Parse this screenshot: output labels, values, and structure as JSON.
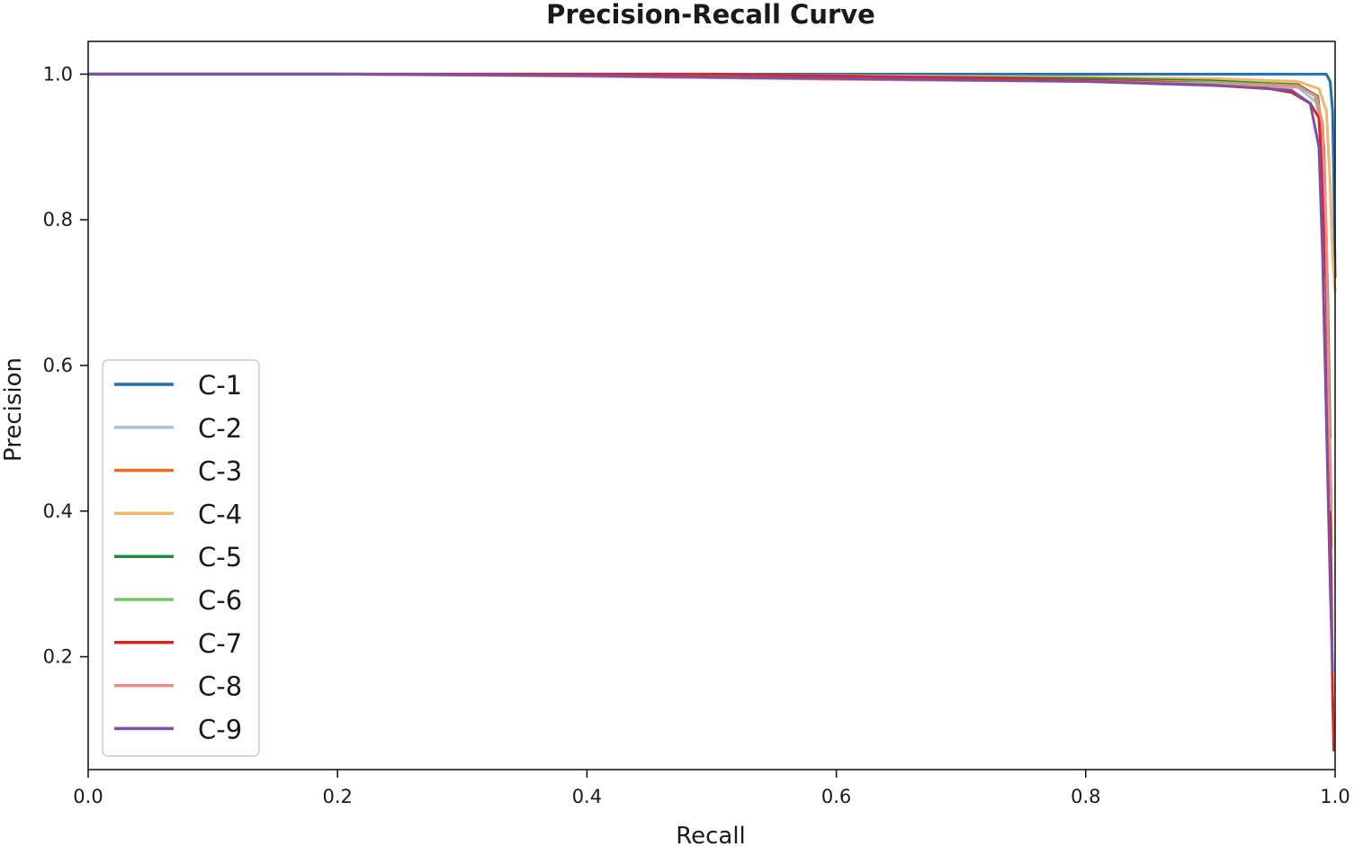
{
  "chart_data": {
    "type": "line",
    "title": "Precision-Recall Curve",
    "xlabel": "Recall",
    "ylabel": "Precision",
    "xlim": [
      0.0,
      1.0
    ],
    "ylim": [
      0.045,
      1.045
    ],
    "xticks": [
      "0.0",
      "0.2",
      "0.4",
      "0.6",
      "0.8",
      "1.0"
    ],
    "yticks": [
      "0.2",
      "0.4",
      "0.6",
      "0.8",
      "1.0"
    ],
    "grid": false,
    "legend_position": "lower-left",
    "series": [
      {
        "name": "C-1",
        "color": "#1f6fb4",
        "x": [
          0.0,
          0.3,
          0.6,
          0.85,
          0.95,
          0.993,
          0.996,
          0.998,
          0.999,
          1.0
        ],
        "y": [
          1.0,
          1.0,
          1.0,
          1.0,
          1.0,
          1.0,
          0.99,
          0.95,
          0.85,
          0.72
        ]
      },
      {
        "name": "C-2",
        "color": "#a4c2e4",
        "x": [
          0.0,
          0.2,
          0.4,
          0.6,
          0.8,
          0.9,
          0.97,
          0.986,
          0.99,
          0.993,
          0.995,
          0.997
        ],
        "y": [
          1.0,
          1.0,
          0.998,
          0.995,
          0.99,
          0.984,
          0.982,
          0.96,
          0.9,
          0.7,
          0.45,
          0.3
        ]
      },
      {
        "name": "C-3",
        "color": "#f26b1d",
        "x": [
          0.0,
          0.2,
          0.4,
          0.6,
          0.8,
          0.9,
          0.97,
          0.985,
          0.99,
          0.992,
          0.995,
          0.997
        ],
        "y": [
          1.0,
          1.0,
          0.999,
          0.996,
          0.992,
          0.99,
          0.986,
          0.97,
          0.93,
          0.8,
          0.55,
          0.35
        ]
      },
      {
        "name": "C-4",
        "color": "#f5b36b",
        "x": [
          0.0,
          0.2,
          0.4,
          0.6,
          0.8,
          0.9,
          0.97,
          0.987,
          0.993,
          0.996,
          0.998,
          1.0
        ],
        "y": [
          1.0,
          1.0,
          1.0,
          0.998,
          0.996,
          0.994,
          0.99,
          0.98,
          0.95,
          0.85,
          0.75,
          0.7
        ]
      },
      {
        "name": "C-5",
        "color": "#1e8a3c",
        "x": [
          0.0,
          0.2,
          0.4,
          0.6,
          0.8,
          0.9,
          0.97,
          0.986,
          0.991,
          0.994,
          0.996
        ],
        "y": [
          1.0,
          1.0,
          0.999,
          0.997,
          0.994,
          0.991,
          0.985,
          0.97,
          0.9,
          0.7,
          0.5
        ]
      },
      {
        "name": "C-6",
        "color": "#7cc46a",
        "x": [
          0.0,
          0.2,
          0.4,
          0.6,
          0.8,
          0.9,
          0.97,
          0.984,
          0.99,
          0.993,
          0.995,
          0.997
        ],
        "y": [
          1.0,
          1.0,
          0.998,
          0.996,
          0.992,
          0.989,
          0.984,
          0.97,
          0.92,
          0.75,
          0.55,
          0.4
        ]
      },
      {
        "name": "C-7",
        "color": "#d62728",
        "x": [
          0.0,
          0.3,
          0.5,
          0.7,
          0.85,
          0.93,
          0.965,
          0.98,
          0.987,
          0.99,
          0.993,
          0.995,
          0.997,
          0.998,
          0.999
        ],
        "y": [
          1.0,
          1.0,
          1.0,
          0.995,
          0.99,
          0.985,
          0.975,
          0.96,
          0.94,
          0.85,
          0.7,
          0.5,
          0.3,
          0.15,
          0.07
        ]
      },
      {
        "name": "C-8",
        "color": "#f08a8a",
        "x": [
          0.0,
          0.2,
          0.4,
          0.6,
          0.8,
          0.9,
          0.97,
          0.985,
          0.99,
          0.993,
          0.995,
          0.997
        ],
        "y": [
          1.0,
          1.0,
          0.997,
          0.993,
          0.99,
          0.987,
          0.983,
          0.97,
          0.93,
          0.78,
          0.55,
          0.4
        ]
      },
      {
        "name": "C-9",
        "color": "#7e4fa6",
        "x": [
          0.0,
          0.2,
          0.4,
          0.6,
          0.8,
          0.9,
          0.965,
          0.98,
          0.987,
          0.99,
          0.992,
          0.994,
          0.996,
          0.998
        ],
        "y": [
          1.0,
          1.0,
          0.998,
          0.994,
          0.99,
          0.985,
          0.978,
          0.96,
          0.9,
          0.75,
          0.6,
          0.45,
          0.3,
          0.18
        ]
      }
    ]
  }
}
